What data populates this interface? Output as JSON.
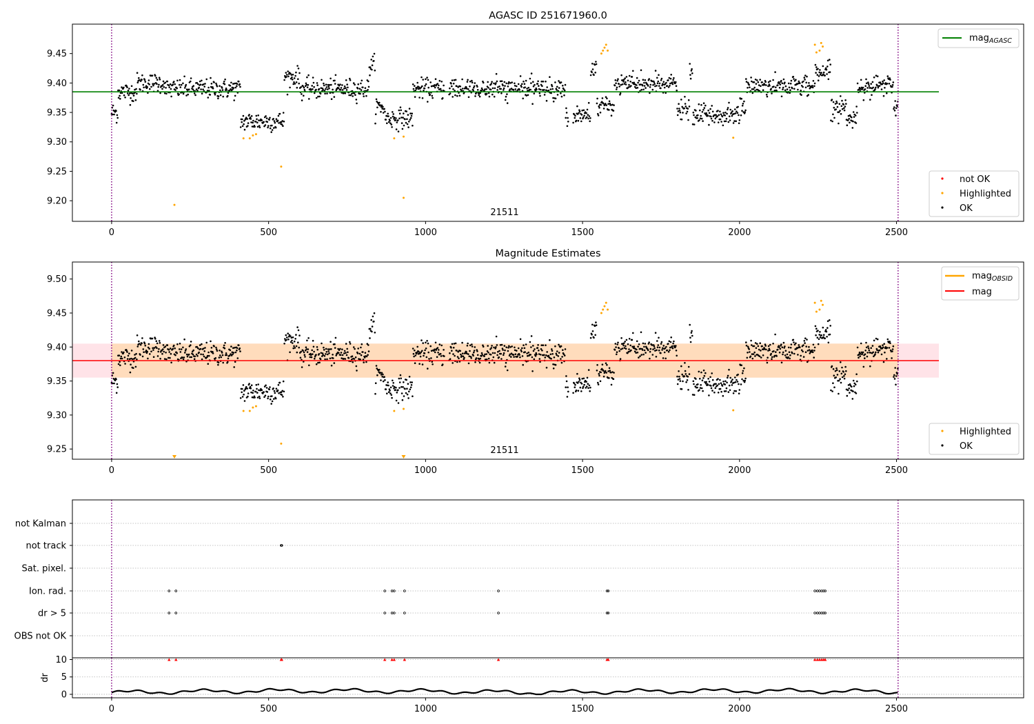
{
  "colors": {
    "ok": "#000000",
    "highlighted": "#ffa500",
    "not_ok": "#ff0000",
    "agasc_line": "#008000",
    "mag_line": "#ff0000",
    "obsid_line": "#ffa500",
    "band": "#ffc0cb",
    "band_inner": "#ffd9b0",
    "boundary": "#800080",
    "grid": "#b0b0b0"
  },
  "chart_data": [
    {
      "type": "scatter",
      "title": "AGASC ID 251671960.0",
      "xlim": [
        -125,
        2905
      ],
      "ylim": [
        9.165,
        9.5
      ],
      "x_ticks": [
        0,
        500,
        1000,
        1500,
        2000,
        2500
      ],
      "y_ticks": [
        9.2,
        9.25,
        9.3,
        9.35,
        9.4,
        9.45
      ],
      "hline": {
        "y": 9.385,
        "x_range": [
          -125,
          2635
        ],
        "legend": "mag",
        "legend_sub": "AGASC"
      },
      "obsid_boundaries": [
        0,
        2505
      ],
      "obsid_label": {
        "text": "21511",
        "x": 1252
      },
      "legend_points": [
        "not OK",
        "Highlighted",
        "OK"
      ],
      "highlighted_points": [
        [
          420,
          9.306
        ],
        [
          440,
          9.306
        ],
        [
          450,
          9.311
        ],
        [
          460,
          9.313
        ],
        [
          200,
          9.193
        ],
        [
          540,
          9.258
        ],
        [
          900,
          9.306
        ],
        [
          930,
          9.309
        ],
        [
          930,
          9.205
        ],
        [
          1560,
          9.45
        ],
        [
          1565,
          9.455
        ],
        [
          1570,
          9.46
        ],
        [
          1575,
          9.465
        ],
        [
          1580,
          9.455
        ],
        [
          1980,
          9.307
        ],
        [
          2240,
          9.465
        ],
        [
          2245,
          9.452
        ],
        [
          2255,
          9.455
        ],
        [
          2260,
          9.468
        ],
        [
          2265,
          9.462
        ]
      ]
    },
    {
      "type": "scatter",
      "title": "Magnitude Estimates",
      "xlim": [
        -125,
        2905
      ],
      "ylim": [
        9.235,
        9.525
      ],
      "x_ticks": [
        0,
        500,
        1000,
        1500,
        2000,
        2500
      ],
      "y_ticks": [
        9.25,
        9.3,
        9.35,
        9.4,
        9.45,
        9.5
      ],
      "hline": {
        "y": 9.38,
        "x_range": [
          -125,
          2635
        ],
        "legend": "mag"
      },
      "band": [
        9.355,
        9.405
      ],
      "obsid_line_legend": "mag",
      "obsid_line_legend_sub": "OBSID",
      "obsid_boundaries": [
        0,
        2505
      ],
      "obsid_label": {
        "text": "21511",
        "x": 1252
      },
      "legend_points": [
        "Highlighted",
        "OK"
      ],
      "highlighted_points": [
        [
          420,
          9.306
        ],
        [
          440,
          9.306
        ],
        [
          450,
          9.311
        ],
        [
          460,
          9.313
        ],
        [
          540,
          9.258
        ],
        [
          900,
          9.306
        ],
        [
          930,
          9.309
        ],
        [
          1560,
          9.45
        ],
        [
          1565,
          9.455
        ],
        [
          1570,
          9.46
        ],
        [
          1575,
          9.465
        ],
        [
          1580,
          9.455
        ],
        [
          1980,
          9.307
        ],
        [
          2240,
          9.465
        ],
        [
          2245,
          9.452
        ],
        [
          2255,
          9.455
        ],
        [
          2260,
          9.468
        ],
        [
          2265,
          9.462
        ]
      ],
      "offscale_points": [
        200,
        930
      ]
    },
    {
      "type": "scatter",
      "xlim": [
        -125,
        2905
      ],
      "flag_rows": [
        "not Kalman",
        "not track",
        "Sat. pixel.",
        "Ion. rad.",
        "dr > 5",
        "OBS not OK"
      ],
      "flags": {
        "not Kalman": [],
        "not track": [
          540,
          542
        ],
        "Sat. pixel.": [],
        "Ion. rad.": [
          183,
          205,
          870,
          893,
          900,
          933,
          1232,
          1578,
          1582,
          2240,
          2248,
          2255,
          2262,
          2268,
          2273
        ],
        "dr > 5": [
          183,
          205,
          870,
          893,
          900,
          933,
          1232,
          1578,
          1582,
          2240,
          2248,
          2255,
          2262,
          2268,
          2273
        ],
        "OBS not OK": []
      }
    },
    {
      "type": "scatter",
      "xlim": [
        -125,
        2905
      ],
      "ylim": [
        -1,
        10.5
      ],
      "x_ticks": [
        0,
        500,
        1000,
        1500,
        2000,
        2500
      ],
      "y_ticks": [
        0,
        5,
        10
      ],
      "ylabel": "dr",
      "clipped_at": 10,
      "clipped_x": [
        183,
        205,
        540,
        542,
        870,
        893,
        900,
        933,
        1232,
        1578,
        1582,
        2240,
        2248,
        2255,
        2262,
        2268,
        2273
      ]
    }
  ]
}
